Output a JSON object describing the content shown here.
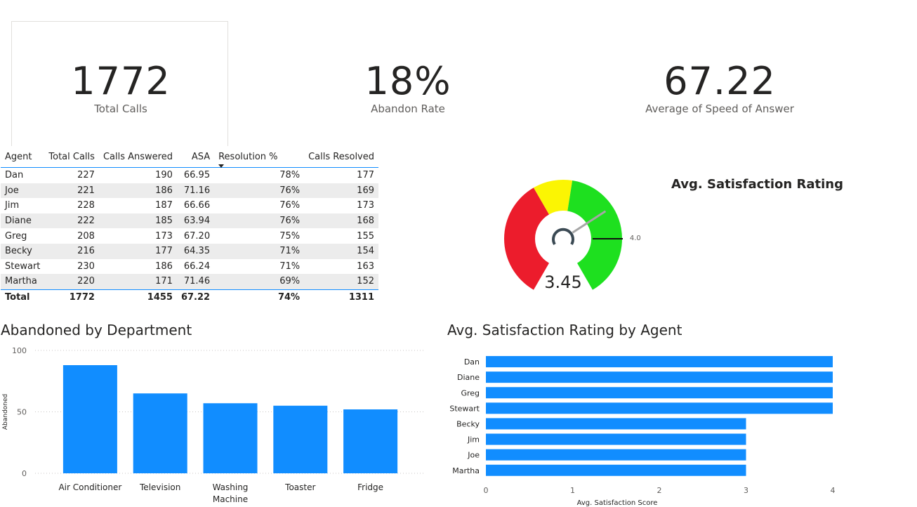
{
  "kpis": [
    {
      "value": "1772",
      "label": "Total Calls"
    },
    {
      "value": "18%",
      "label": "Abandon Rate"
    },
    {
      "value": "67.22",
      "label": "Average of Speed of Answer"
    }
  ],
  "table": {
    "columns": [
      "Agent",
      "Total Calls",
      "Calls Answered",
      "ASA",
      "Resolution %",
      "Calls Resolved"
    ],
    "rows": [
      [
        "Dan",
        "227",
        "190",
        "66.95",
        "78%",
        "177"
      ],
      [
        "Joe",
        "221",
        "186",
        "71.16",
        "76%",
        "169"
      ],
      [
        "Jim",
        "228",
        "187",
        "66.66",
        "76%",
        "173"
      ],
      [
        "Diane",
        "222",
        "185",
        "63.94",
        "76%",
        "168"
      ],
      [
        "Greg",
        "208",
        "173",
        "67.20",
        "75%",
        "155"
      ],
      [
        "Becky",
        "216",
        "177",
        "64.35",
        "71%",
        "154"
      ],
      [
        "Stewart",
        "230",
        "186",
        "66.24",
        "71%",
        "163"
      ],
      [
        "Martha",
        "220",
        "171",
        "71.46",
        "69%",
        "152"
      ]
    ],
    "total": [
      "Total",
      "1772",
      "1455",
      "67.22",
      "74%",
      "1311"
    ]
  },
  "gauge": {
    "title": "Avg. Satisfaction Rating",
    "value_label": "3.45",
    "value": 3.45,
    "min": 0,
    "max": 5,
    "target_label": "4.00",
    "target": 4.0,
    "colors": {
      "red": "#ec1c2c",
      "yellow": "#fbf503",
      "green": "#1ee01f",
      "needle": "#a6a6a6"
    }
  },
  "chart_data": [
    {
      "type": "bar",
      "title": "Abandoned by Department",
      "categories": [
        "Air Conditioner",
        "Television",
        "Washing Machine",
        "Toaster",
        "Fridge"
      ],
      "category_lines": [
        [
          "Air Conditioner"
        ],
        [
          "Television"
        ],
        [
          "Washing",
          "Machine"
        ],
        [
          "Toaster"
        ],
        [
          "Fridge"
        ]
      ],
      "values": [
        88,
        65,
        57,
        55,
        52
      ],
      "xlabel": "",
      "ylabel": "Abandoned",
      "ylim": [
        0,
        100
      ],
      "yticks": [
        "0",
        "50",
        "100"
      ],
      "color": "#118dff",
      "grid": true
    },
    {
      "type": "bar",
      "orientation": "horizontal",
      "title": "Avg. Satisfaction Rating by Agent",
      "categories": [
        "Dan",
        "Diane",
        "Greg",
        "Stewart",
        "Becky",
        "Jim",
        "Joe",
        "Martha"
      ],
      "values": [
        4,
        4,
        4,
        4,
        3,
        3,
        3,
        3
      ],
      "xlabel": "Avg. Satisfaction Score",
      "ylabel": "",
      "xlim": [
        0,
        4
      ],
      "xticks": [
        "0",
        "1",
        "2",
        "3",
        "4"
      ],
      "color": "#118dff",
      "grid": false
    }
  ]
}
